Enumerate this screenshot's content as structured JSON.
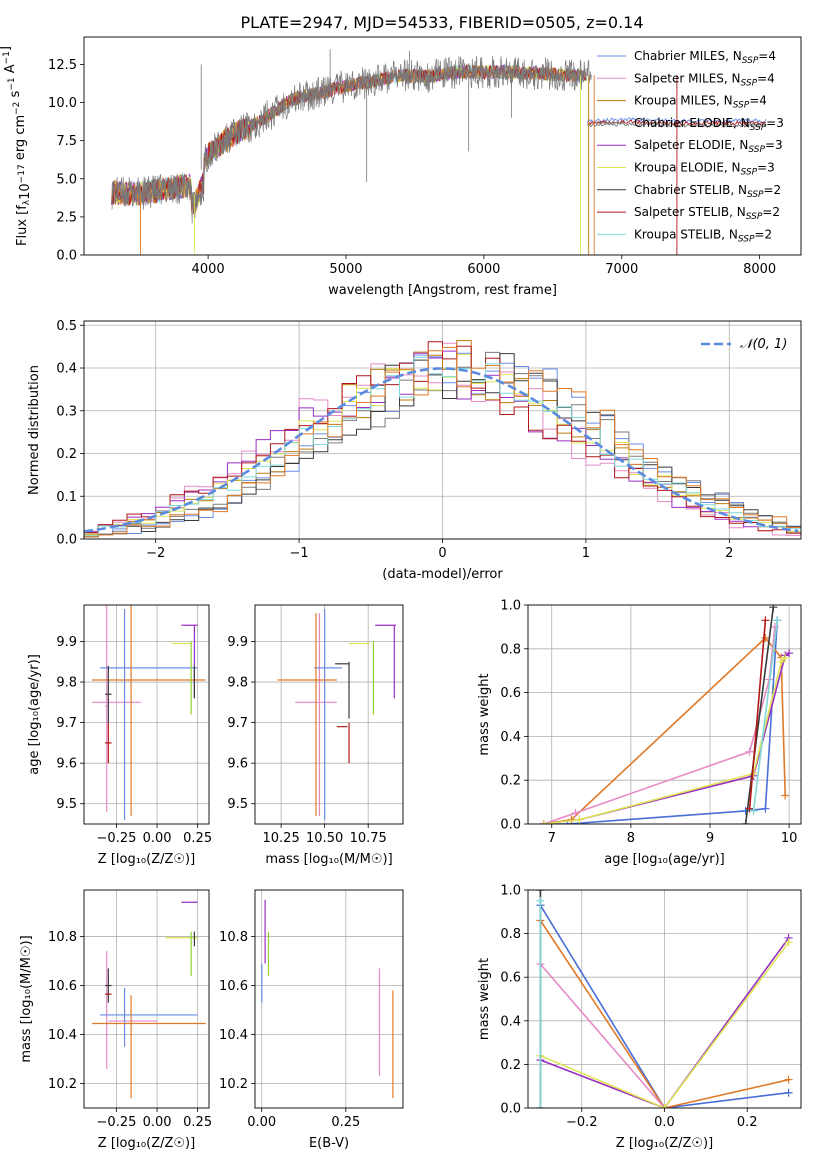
{
  "title": "PLATE=2947, MJD=54533, FIBERID=0505, z=0.14",
  "colors": {
    "c0": "#6a8ee8",
    "c1": "#e58ac6",
    "c2": "#c07a10",
    "c3": "#7a7a7a",
    "c4": "#9a2fc2",
    "c5": "#dde552",
    "c6": "#3a3a3a",
    "c7": "#b01818",
    "c8": "#7fd8d8",
    "c9": "#e07a28",
    "c10": "#8fd02a",
    "c11": "#4a6ed8"
  },
  "chart_data": [
    {
      "id": "spectrum",
      "type": "line",
      "xlabel": "wavelength [Angstrom, rest frame]",
      "ylabel": "Flux [f_λ 10^-17 erg cm^-2 s^-1 A^-1]",
      "xlim": [
        3100,
        8300
      ],
      "ylim": [
        0,
        14.3
      ],
      "xticks": [
        4000,
        5000,
        6000,
        7000,
        8000
      ],
      "yticks": [
        0.0,
        2.5,
        5.0,
        7.5,
        10.0,
        12.5
      ],
      "legend_position": "top-right",
      "legend": [
        {
          "label": "Chabrier MILES, N",
          "sub": "SSP",
          "suffix": "=4",
          "color": "c0"
        },
        {
          "label": "Salpeter MILES, N",
          "sub": "SSP",
          "suffix": "=4",
          "color": "c1"
        },
        {
          "label": "Kroupa MILES, N",
          "sub": "SSP",
          "suffix": "=4",
          "color": "c2"
        },
        {
          "label": "Chabrier ELODIE, N",
          "sub": "SSP",
          "suffix": "=3",
          "color": "c3"
        },
        {
          "label": "Salpeter ELODIE, N",
          "sub": "SSP",
          "suffix": "=3",
          "color": "c4"
        },
        {
          "label": "Kroupa ELODIE, N",
          "sub": "SSP",
          "suffix": "=3",
          "color": "c5"
        },
        {
          "label": "Chabrier STELIB, N",
          "sub": "SSP",
          "suffix": "=2",
          "color": "c6"
        },
        {
          "label": "Salpeter STELIB, N",
          "sub": "SSP",
          "suffix": "=2",
          "color": "c7"
        },
        {
          "label": "Kroupa STELIB, N",
          "sub": "SSP",
          "suffix": "=2",
          "color": "c8"
        }
      ],
      "continuum": {
        "x": [
          3300,
          3500,
          3700,
          3900,
          4000,
          4200,
          4400,
          4600,
          4800,
          5000,
          5200,
          5400,
          5600,
          5800,
          6000,
          6200,
          6400,
          6600,
          6750
        ],
        "y": [
          4.1,
          4.0,
          4.3,
          4.6,
          6.6,
          8.0,
          8.9,
          10.2,
          10.6,
          11.1,
          11.4,
          11.8,
          11.7,
          12.0,
          12.0,
          12.0,
          11.9,
          11.8,
          11.8
        ]
      },
      "tail": {
        "x": [
          6750,
          7000,
          7400,
          8000
        ],
        "y": [
          8.8,
          8.9,
          8.8,
          8.8
        ]
      },
      "spikes": [
        {
          "x": 3950,
          "y": 12.5
        },
        {
          "x": 4885,
          "y": 13.5
        },
        {
          "x": 5150,
          "y": 4.8
        },
        {
          "x": 5890,
          "y": 6.8
        },
        {
          "x": 5460,
          "y": 13.4
        },
        {
          "x": 6200,
          "y": 9.0
        }
      ]
    },
    {
      "id": "residuals",
      "type": "histogram",
      "xlabel": "(data-model)/error",
      "ylabel": "Normed distribution",
      "xlim": [
        -2.5,
        2.5
      ],
      "ylim": [
        0,
        0.51
      ],
      "xticks": [
        -2,
        -1,
        0,
        1,
        2
      ],
      "xtick_labels": [
        "−2",
        "−1",
        "0",
        "1",
        "2"
      ],
      "yticks": [
        0.0,
        0.1,
        0.2,
        0.3,
        0.4,
        0.5
      ],
      "legend_label": "𝒩(0, 1)",
      "legend_position": "top-right",
      "bin_width": 0.1,
      "bin_start": -2.5,
      "reference_curve": "gaussian(0,1)"
    },
    {
      "id": "age-vs-Z",
      "type": "errorbar",
      "xlabel": "Z [log₁₀(Z/Z☉)]",
      "ylabel": "age  [log₁₀(age/yr)]",
      "xlim": [
        -0.45,
        0.32
      ],
      "ylim": [
        9.45,
        9.99
      ],
      "xticks": [
        -0.25,
        0.0,
        0.25
      ],
      "xtick_labels": [
        "−0.25",
        "0.00",
        "0.25"
      ],
      "yticks": [
        9.5,
        9.6,
        9.7,
        9.8,
        9.9
      ],
      "points": [
        {
          "x": -0.31,
          "y": 9.74,
          "xerr": 0.01,
          "yerr": 0.26,
          "color": "c1"
        },
        {
          "x": -0.25,
          "y": 9.75,
          "xerr": 0.15,
          "yerr": 0.0,
          "color": "c1"
        },
        {
          "x": -0.2,
          "y": 9.72,
          "xerr": 0.0,
          "yerr": 0.26,
          "color": "c0"
        },
        {
          "x": -0.05,
          "y": 9.835,
          "xerr": 0.3,
          "yerr": 0.0,
          "color": "c0"
        },
        {
          "x": -0.16,
          "y": 9.73,
          "xerr": 0.0,
          "yerr": 0.26,
          "color": "c9"
        },
        {
          "x": -0.05,
          "y": 9.805,
          "xerr": 0.35,
          "yerr": 0.0,
          "color": "c9"
        },
        {
          "x": -0.3,
          "y": 9.77,
          "xerr": 0.02,
          "yerr": 0.07,
          "color": "c6"
        },
        {
          "x": -0.3,
          "y": 9.65,
          "xerr": 0.02,
          "yerr": 0.05,
          "color": "c7"
        },
        {
          "x": 0.2,
          "y": 9.94,
          "xerr": 0.05,
          "yerr": 0.0,
          "color": "c4"
        },
        {
          "x": 0.23,
          "y": 9.85,
          "xerr": 0.0,
          "yerr": 0.09,
          "color": "c4"
        },
        {
          "x": 0.15,
          "y": 9.895,
          "xerr": 0.06,
          "yerr": 0.0,
          "color": "c5"
        },
        {
          "x": 0.21,
          "y": 9.81,
          "xerr": 0.0,
          "yerr": 0.09,
          "color": "c10"
        },
        {
          "x": 0.23,
          "y": 9.8,
          "xerr": 0.0,
          "yerr": 0.04,
          "color": "c6"
        }
      ]
    },
    {
      "id": "age-vs-mass",
      "type": "errorbar",
      "xlabel": "mass [log₁₀(M/M☉)]",
      "ylabel": "",
      "xlim": [
        10.1,
        10.95
      ],
      "ylim": [
        9.45,
        9.99
      ],
      "xticks": [
        10.25,
        10.5,
        10.75
      ],
      "yticks": [
        9.5,
        9.6,
        9.7,
        9.8,
        9.9
      ],
      "points": [
        {
          "x": 10.45,
          "y": 9.75,
          "xerr": 0.12,
          "yerr": 0.0,
          "color": "c1"
        },
        {
          "x": 10.47,
          "y": 9.72,
          "xerr": 0.0,
          "yerr": 0.25,
          "color": "c1"
        },
        {
          "x": 10.5,
          "y": 9.72,
          "xerr": 0.0,
          "yerr": 0.26,
          "color": "c0"
        },
        {
          "x": 10.52,
          "y": 9.835,
          "xerr": 0.08,
          "yerr": 0.0,
          "color": "c0"
        },
        {
          "x": 10.45,
          "y": 9.72,
          "xerr": 0.0,
          "yerr": 0.25,
          "color": "c9"
        },
        {
          "x": 10.4,
          "y": 9.805,
          "xerr": 0.17,
          "yerr": 0.0,
          "color": "c9"
        },
        {
          "x": 10.6,
          "y": 9.845,
          "xerr": 0.04,
          "yerr": 0.0,
          "color": "c6"
        },
        {
          "x": 10.64,
          "y": 9.78,
          "xerr": 0.0,
          "yerr": 0.07,
          "color": "c6"
        },
        {
          "x": 10.6,
          "y": 9.69,
          "xerr": 0.03,
          "yerr": 0.0,
          "color": "c7"
        },
        {
          "x": 10.64,
          "y": 9.65,
          "xerr": 0.0,
          "yerr": 0.05,
          "color": "c7"
        },
        {
          "x": 10.85,
          "y": 9.94,
          "xerr": 0.06,
          "yerr": 0.0,
          "color": "c4"
        },
        {
          "x": 10.9,
          "y": 9.85,
          "xerr": 0.0,
          "yerr": 0.09,
          "color": "c4"
        },
        {
          "x": 10.7,
          "y": 9.895,
          "xerr": 0.06,
          "yerr": 0.0,
          "color": "c5"
        },
        {
          "x": 10.78,
          "y": 9.81,
          "xerr": 0.0,
          "yerr": 0.09,
          "color": "c10"
        }
      ]
    },
    {
      "id": "weight-vs-age",
      "type": "line",
      "xlabel": "age  [log₁₀(age/yr)]",
      "ylabel": "mass weight",
      "xlim": [
        6.7,
        10.15
      ],
      "ylim": [
        0,
        1.0
      ],
      "xticks": [
        7,
        8,
        9,
        10
      ],
      "yticks": [
        0.0,
        0.2,
        0.4,
        0.6,
        0.8,
        1.0
      ],
      "grid": true,
      "series": [
        {
          "color": "c11",
          "x": [
            6.9,
            7.2,
            9.45,
            9.7,
            9.85
          ],
          "y": [
            0.0,
            0.0,
            0.06,
            0.07,
            0.93
          ]
        },
        {
          "color": "c9",
          "x": [
            6.9,
            7.25,
            9.7,
            9.9,
            9.95
          ],
          "y": [
            0.0,
            0.02,
            0.85,
            0.76,
            0.13
          ]
        },
        {
          "color": "c1",
          "x": [
            6.9,
            7.3,
            9.5,
            9.75,
            9.82
          ],
          "y": [
            0.0,
            0.05,
            0.33,
            0.66,
            0.9
          ]
        },
        {
          "color": "c4",
          "x": [
            6.9,
            7.35,
            9.55,
            9.95,
            10.0
          ],
          "y": [
            0.0,
            0.02,
            0.22,
            0.77,
            0.78
          ]
        },
        {
          "color": "c5",
          "x": [
            6.9,
            7.35,
            9.55,
            9.9,
            9.95
          ],
          "y": [
            0.0,
            0.02,
            0.23,
            0.74,
            0.76
          ]
        },
        {
          "color": "c6",
          "x": [
            9.45,
            9.8
          ],
          "y": [
            0.0,
            0.99
          ]
        },
        {
          "color": "c7",
          "x": [
            9.5,
            9.7
          ],
          "y": [
            0.07,
            0.93
          ]
        },
        {
          "color": "c8",
          "x": [
            9.55,
            9.85
          ],
          "y": [
            0.06,
            0.93
          ]
        }
      ]
    },
    {
      "id": "mass-vs-Z",
      "type": "errorbar",
      "xlabel": "Z [log₁₀(Z/Z☉)]",
      "ylabel": "mass [log₁₀(M/M☉)]",
      "xlim": [
        -0.45,
        0.32
      ],
      "ylim": [
        10.1,
        10.99
      ],
      "xticks": [
        -0.25,
        0.0,
        0.25
      ],
      "xtick_labels": [
        "−0.25",
        "0.00",
        "0.25"
      ],
      "yticks": [
        10.2,
        10.4,
        10.6,
        10.8
      ],
      "points": [
        {
          "x": -0.31,
          "y": 10.5,
          "xerr": 0.0,
          "yerr": 0.24,
          "color": "c1"
        },
        {
          "x": -0.15,
          "y": 10.455,
          "xerr": 0.15,
          "yerr": 0.0,
          "color": "c1"
        },
        {
          "x": -0.2,
          "y": 10.47,
          "xerr": 0.0,
          "yerr": 0.12,
          "color": "c0"
        },
        {
          "x": -0.05,
          "y": 10.48,
          "xerr": 0.3,
          "yerr": 0.0,
          "color": "c0"
        },
        {
          "x": -0.16,
          "y": 10.35,
          "xerr": 0.0,
          "yerr": 0.21,
          "color": "c9"
        },
        {
          "x": -0.05,
          "y": 10.445,
          "xerr": 0.35,
          "yerr": 0.0,
          "color": "c9"
        },
        {
          "x": -0.3,
          "y": 10.6,
          "xerr": 0.02,
          "yerr": 0.07,
          "color": "c6"
        },
        {
          "x": -0.3,
          "y": 10.565,
          "xerr": 0.02,
          "yerr": 0.0,
          "color": "c7"
        },
        {
          "x": 0.2,
          "y": 10.94,
          "xerr": 0.05,
          "yerr": 0.0,
          "color": "c4"
        },
        {
          "x": 0.15,
          "y": 10.795,
          "xerr": 0.1,
          "yerr": 0.0,
          "color": "c5"
        },
        {
          "x": 0.21,
          "y": 10.73,
          "xerr": 0.0,
          "yerr": 0.09,
          "color": "c10"
        },
        {
          "x": 0.23,
          "y": 10.79,
          "xerr": 0.0,
          "yerr": 0.03,
          "color": "c6"
        }
      ]
    },
    {
      "id": "mass-vs-ebv",
      "type": "errorbar",
      "xlabel": "E(B-V)",
      "ylabel": "",
      "xlim": [
        -0.02,
        0.42
      ],
      "ylim": [
        10.1,
        10.99
      ],
      "xticks": [
        0.0,
        0.25
      ],
      "xtick_labels": [
        "0.00",
        "0.25"
      ],
      "yticks": [
        10.2,
        10.4,
        10.6,
        10.8
      ],
      "points": [
        {
          "x": 0.0,
          "y": 10.61,
          "xerr": 0.0,
          "yerr": 0.08,
          "color": "c0"
        },
        {
          "x": 0.01,
          "y": 10.82,
          "xerr": 0.0,
          "yerr": 0.13,
          "color": "c4"
        },
        {
          "x": 0.02,
          "y": 10.73,
          "xerr": 0.0,
          "yerr": 0.09,
          "color": "c10"
        },
        {
          "x": 0.35,
          "y": 10.45,
          "xerr": 0.0,
          "yerr": 0.22,
          "color": "c1"
        },
        {
          "x": 0.39,
          "y": 10.36,
          "xerr": 0.0,
          "yerr": 0.22,
          "color": "c9"
        }
      ]
    },
    {
      "id": "weight-vs-Z",
      "type": "line",
      "xlabel": "Z [log₁₀(Z/Z☉)]",
      "ylabel": "mass weight",
      "xlim": [
        -0.33,
        0.33
      ],
      "ylim": [
        0,
        1.0
      ],
      "xticks": [
        -0.2,
        0.0,
        0.2
      ],
      "xtick_labels": [
        "−0.2",
        "0.0",
        "0.2"
      ],
      "yticks": [
        0.0,
        0.2,
        0.4,
        0.6,
        0.8,
        1.0
      ],
      "grid": true,
      "series": [
        {
          "color": "c11",
          "x": [
            -0.3,
            0.0,
            0.3
          ],
          "y": [
            0.93,
            0.0,
            0.07
          ]
        },
        {
          "color": "c9",
          "x": [
            -0.3,
            0.0,
            0.3
          ],
          "y": [
            0.86,
            0.0,
            0.13
          ]
        },
        {
          "color": "c1",
          "x": [
            -0.3,
            0.0
          ],
          "y": [
            0.66,
            0.0
          ]
        },
        {
          "color": "c4",
          "x": [
            -0.3,
            0.0,
            0.3
          ],
          "y": [
            0.22,
            0.0,
            0.78
          ]
        },
        {
          "color": "c5",
          "x": [
            -0.3,
            0.0,
            0.3
          ],
          "y": [
            0.24,
            0.0,
            0.76
          ]
        },
        {
          "color": "c6",
          "x": [
            -0.3,
            -0.3
          ],
          "y": [
            0.0,
            1.0
          ]
        },
        {
          "color": "c8",
          "x": [
            -0.3,
            -0.3
          ],
          "y": [
            0.0,
            0.95
          ]
        }
      ]
    }
  ]
}
